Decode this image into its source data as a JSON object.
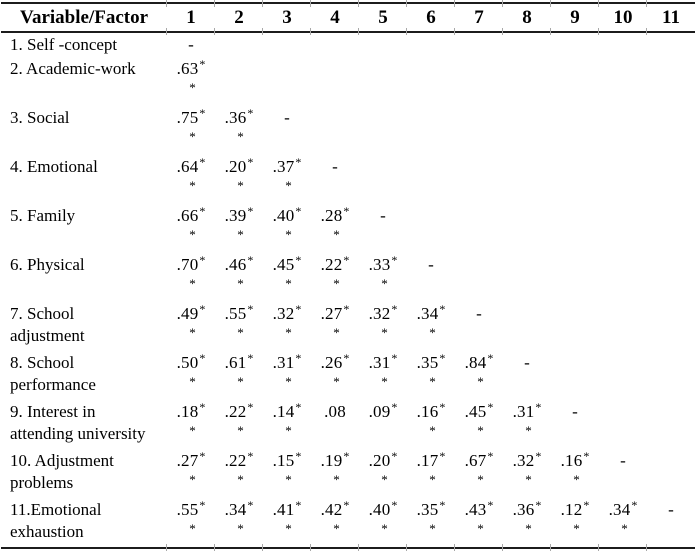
{
  "page": {
    "background": "#ffffff",
    "text_color": "#000000",
    "rule_color": "#1c1c1c",
    "tick_color": "#a8a8a8"
  },
  "table": {
    "header": {
      "factor_label": "Variable/Factor",
      "columns": [
        "1",
        "2",
        "3",
        "4",
        "5",
        "6",
        "7",
        "8",
        "9",
        "10",
        "11"
      ]
    },
    "rows": [
      {
        "label1": "1. Self -concept",
        "label2": "",
        "single_line": true,
        "values": [
          "-",
          "",
          "",
          "",
          "",
          "",
          "",
          "",
          "",
          "",
          ""
        ]
      },
      {
        "label1": "2. Academic-work",
        "label2": "",
        "values": [
          ".63**",
          "",
          "",
          "",
          "",
          "",
          "",
          "",
          "",
          "",
          ""
        ]
      },
      {
        "label1": "3. Social",
        "label2": "",
        "values": [
          ".75**",
          ".36**",
          "-",
          "",
          "",
          "",
          "",
          "",
          "",
          "",
          ""
        ]
      },
      {
        "label1": "4. Emotional",
        "label2": "",
        "values": [
          ".64**",
          ".20**",
          ".37**",
          "-",
          "",
          "",
          "",
          "",
          "",
          "",
          ""
        ]
      },
      {
        "label1": "5. Family",
        "label2": "",
        "values": [
          ".66**",
          ".39**",
          ".40**",
          ".28**",
          "-",
          "",
          "",
          "",
          "",
          "",
          ""
        ]
      },
      {
        "label1": "6. Physical",
        "label2": "",
        "values": [
          ".70**",
          ".46**",
          ".45**",
          ".22**",
          ".33**",
          "-",
          "",
          "",
          "",
          "",
          ""
        ]
      },
      {
        "label1": "7. School",
        "label2": "adjustment",
        "values": [
          ".49**",
          ".55**",
          ".32**",
          ".27**",
          ".32**",
          ".34**",
          "-",
          "",
          "",
          "",
          ""
        ]
      },
      {
        "label1": "8. School",
        "label2": "performance",
        "values": [
          ".50**",
          ".61**",
          ".31**",
          ".26**",
          ".31**",
          ".35**",
          ".84**",
          "-",
          "",
          "",
          ""
        ]
      },
      {
        "label1": "9. Interest in",
        "label2": "attending university",
        "values": [
          ".18**",
          ".22**",
          ".14**",
          ".08",
          ".09*",
          ".16**",
          ".45**",
          ".31**",
          "-",
          "",
          ""
        ]
      },
      {
        "label1": "10. Adjustment",
        "label2": "problems",
        "values": [
          ".27**",
          ".22**",
          ".15**",
          ".19**",
          ".20**",
          ".17**",
          ".67**",
          ".32**",
          ".16**",
          "-",
          ""
        ]
      },
      {
        "label1": "11.Emotional",
        "label2": "exhaustion",
        "values": [
          ".55**",
          ".34**",
          ".41**",
          ".42**",
          ".40**",
          ".35**",
          ".43**",
          ".36**",
          ".12**",
          ".34**",
          "-"
        ]
      }
    ]
  }
}
